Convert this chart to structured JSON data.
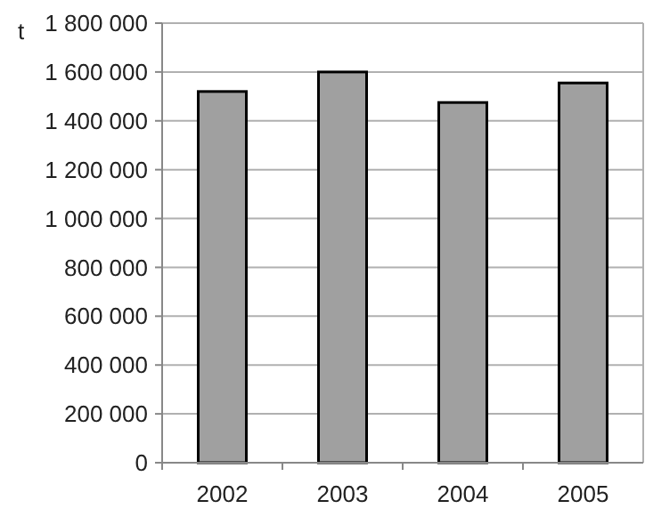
{
  "chart_data": {
    "type": "bar",
    "ylabel": "t",
    "categories": [
      "2002",
      "2003",
      "2004",
      "2005"
    ],
    "values": [
      1520000,
      1600000,
      1475000,
      1555000
    ],
    "color": "#a0a0a0",
    "ylim": [
      0,
      1800000
    ],
    "yticks": [
      0,
      {
        "value": 200000,
        "label": "200 000"
      },
      {
        "value": 400000,
        "label": "400 000"
      },
      {
        "value": 600000,
        "label": "600 000"
      },
      {
        "value": 800000,
        "label": "800 000"
      },
      {
        "value": 1000000,
        "label": "1 000 000"
      },
      {
        "value": 1200000,
        "label": "1 200 000"
      },
      {
        "value": 1400000,
        "label": "1 400 000"
      },
      {
        "value": 1600000,
        "label": "1 600 000"
      },
      {
        "value": 1800000,
        "label": "1 800 000"
      }
    ],
    "grid": "y"
  }
}
